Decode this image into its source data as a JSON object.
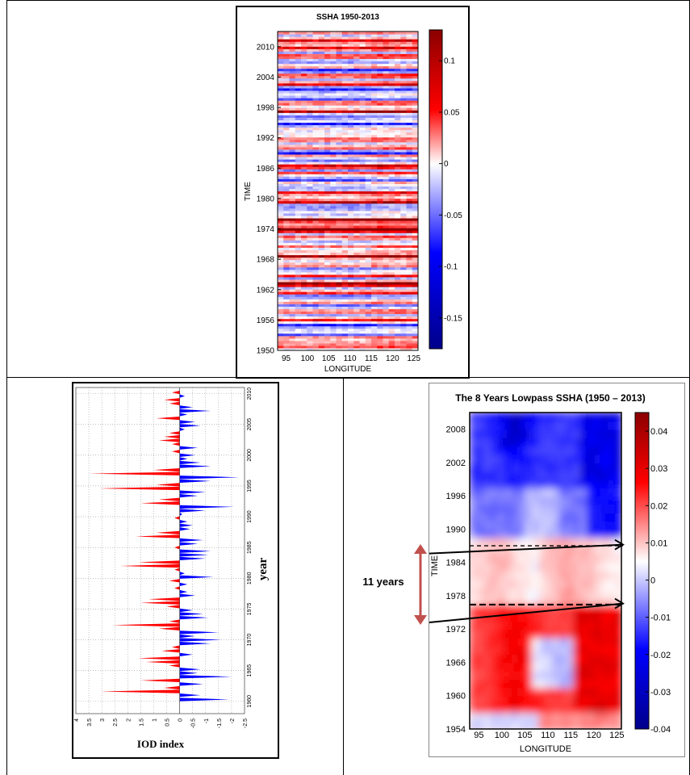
{
  "chart_data": [
    {
      "type": "heatmap",
      "title": "SSHA 1950-2013",
      "xlabel": "LONGITUDE",
      "ylabel": "TIME",
      "x_ticks": [
        "95",
        "100",
        "105",
        "110",
        "115",
        "120",
        "125"
      ],
      "y_ticks": [
        "1950",
        "1956",
        "1962",
        "1968",
        "1974",
        "1980",
        "1986",
        "1992",
        "1998",
        "2004",
        "2010"
      ],
      "colorbar_ticks": [
        "0.1",
        "0.05",
        "0",
        "-0.05",
        "-0.1",
        "-0.15"
      ],
      "xlim": [
        93,
        126
      ],
      "ylim": [
        1950,
        2013
      ],
      "colorbar_range": [
        -0.18,
        0.13
      ],
      "colormap": "blue-white-red",
      "colors": {
        "neg": "#0000a0",
        "mid": "#ffffff",
        "pos": "#8b0000"
      }
    },
    {
      "type": "area",
      "xlabel": "IOD index",
      "ylabel": "year",
      "x_ticks": [
        "4",
        "3.5",
        "3",
        "2.5",
        "2",
        "1.5",
        "1",
        "0.5",
        "0",
        "-0.5",
        "-1",
        "-1.5",
        "-2",
        "-2.5"
      ],
      "y_ticks": [
        "1960",
        "1965",
        "1970",
        "1975",
        "1980",
        "1985",
        "1990",
        "1995",
        "2000",
        "2005",
        "2010"
      ],
      "xlim": [
        4,
        -2.5
      ],
      "ylim": [
        1958,
        2011
      ],
      "grid": true,
      "colors": {
        "positive": "#ff0000",
        "negative": "#0000ff"
      },
      "series": [
        {
          "x": [
            1960.3,
            1961.0,
            1961.6,
            1962.2,
            1962.8,
            1963.4,
            1964.0,
            1964.6,
            1965.2,
            1965.8,
            1966.4,
            1967.0,
            1967.6,
            1968.2,
            1968.8,
            1969.4,
            1970.0,
            1970.6,
            1971.2,
            1971.8,
            1972.4,
            1973.0,
            1973.6,
            1974.2,
            1974.8,
            1975.4,
            1976.0,
            1976.6,
            1977.2,
            1977.8,
            1978.4,
            1979.0,
            1979.6,
            1980.2,
            1980.8,
            1981.4,
            1982.0,
            1982.6,
            1983.2,
            1983.8,
            1984.4,
            1985.0,
            1985.6,
            1986.2,
            1986.8,
            1987.4,
            1988.0,
            1988.6,
            1989.2,
            1989.8,
            1990.4,
            1991.0,
            1991.6,
            1992.2,
            1992.8,
            1993.4,
            1994.0,
            1994.6,
            1995.2,
            1995.8,
            1996.4,
            1997.0,
            1997.6,
            1998.2,
            1998.8,
            1999.4,
            2000.0,
            2000.6,
            2001.2,
            2001.8,
            2002.4,
            2003.0,
            2003.6,
            2004.2,
            2004.8,
            2005.4,
            2006.0,
            2006.6,
            2007.2,
            2007.8,
            2008.4,
            2009.0,
            2009.6,
            2010.2
          ],
          "values": [
            -1.9,
            -0.8,
            3.0,
            0.6,
            -0.9,
            1.5,
            -2.0,
            -0.7,
            -0.8,
            0.4,
            1.3,
            1.6,
            -0.5,
            0.7,
            0.3,
            -1.2,
            -1.6,
            -0.6,
            -1.5,
            0.8,
            2.6,
            0.4,
            -1.1,
            -0.9,
            -0.5,
            0.5,
            1.5,
            1.2,
            -0.6,
            -0.3,
            0.2,
            -0.3,
            0.4,
            -1.3,
            -0.2,
            0.2,
            2.3,
            1.6,
            -1.0,
            -1.1,
            -1.2,
            0.2,
            -0.7,
            -0.9,
            1.7,
            0.9,
            -0.4,
            -0.5,
            -0.3,
            0.2,
            -0.1,
            -1.0,
            -2.1,
            1.5,
            0.8,
            -0.7,
            -1.0,
            3.1,
            0.9,
            -1.2,
            -2.3,
            3.5,
            1.0,
            -1.2,
            -0.8,
            -0.3,
            -0.6,
            0.3,
            -0.7,
            0.3,
            0.8,
            0.6,
            0.4,
            -0.2,
            -0.8,
            -0.6,
            0.9,
            -0.3,
            -1.2,
            -0.5,
            0.4,
            0.6,
            -0.2,
            0.3
          ]
        }
      ]
    },
    {
      "type": "heatmap",
      "title": "The 8 Years Lowpass SSHA (1950 – 2013)",
      "xlabel": "LONGITUDE",
      "ylabel": "TIME",
      "x_ticks": [
        "95",
        "100",
        "105",
        "110",
        "115",
        "120",
        "125"
      ],
      "y_ticks": [
        "1954",
        "1960",
        "1966",
        "1972",
        "1978",
        "1984",
        "1990",
        "1996",
        "2002",
        "2008"
      ],
      "colorbar_ticks": [
        "0.04",
        "0.03",
        "0.02",
        "0.01",
        "0",
        "-0.01",
        "-0.02",
        "-0.03",
        "-0.04"
      ],
      "xlim": [
        93,
        126
      ],
      "ylim": [
        1954,
        2011
      ],
      "colorbar_range": [
        -0.04,
        0.045
      ],
      "colormap": "blue-white-red",
      "annotation": "11 years",
      "colors": {
        "neg": "#00008b",
        "mid": "#ffffff",
        "pos": "#8b0000",
        "bracket": "#c0504d"
      }
    }
  ]
}
